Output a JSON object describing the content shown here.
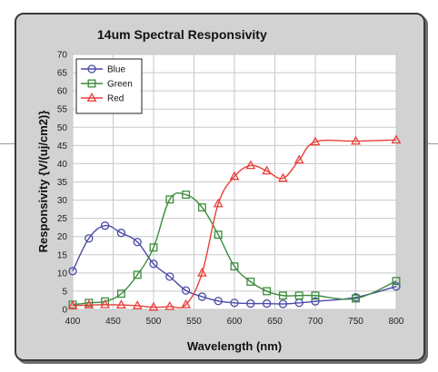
{
  "chart_data": {
    "type": "line",
    "title": "14um Spectral Responsivity",
    "xlabel": "Wavelength (nm)",
    "ylabel": "Responsivity {V/(uj/cm2)}",
    "xlim": [
      400,
      800
    ],
    "ylim": [
      0,
      70
    ],
    "xticks": [
      "400",
      "450",
      "500",
      "550",
      "600",
      "650",
      "700",
      "750",
      "800"
    ],
    "yticks": [
      "0",
      "5",
      "10",
      "15",
      "20",
      "25",
      "30",
      "35",
      "40",
      "45",
      "50",
      "55",
      "60",
      "65",
      "70"
    ],
    "grid": true,
    "legend_position": "top-left",
    "series": [
      {
        "name": "Blue",
        "color": "#4a4aa8",
        "marker": "circle",
        "x": [
          400,
          420,
          440,
          460,
          480,
          500,
          520,
          540,
          560,
          580,
          600,
          620,
          640,
          660,
          680,
          700,
          750,
          800
        ],
        "y": [
          10.5,
          19.5,
          23,
          21,
          18.5,
          12.5,
          9,
          5.2,
          3.5,
          2.3,
          1.8,
          1.6,
          1.6,
          1.5,
          1.8,
          2.2,
          3.3,
          6.3
        ]
      },
      {
        "name": "Green",
        "color": "#3c8c3c",
        "marker": "square",
        "x": [
          400,
          420,
          440,
          460,
          480,
          500,
          520,
          540,
          560,
          580,
          600,
          620,
          640,
          660,
          680,
          700,
          750,
          800
        ],
        "y": [
          1.3,
          1.8,
          2.2,
          4.3,
          9.5,
          17,
          30.2,
          31.5,
          28,
          20.5,
          11.8,
          7.6,
          5,
          3.8,
          3.8,
          3.8,
          3,
          7.8
        ]
      },
      {
        "name": "Red",
        "color": "#e8403a",
        "marker": "triangle",
        "x": [
          400,
          420,
          440,
          460,
          480,
          500,
          520,
          540,
          560,
          580,
          600,
          620,
          640,
          660,
          680,
          700,
          750,
          800
        ],
        "y": [
          1,
          1.2,
          1.3,
          1.2,
          1,
          0.6,
          0.8,
          1.3,
          10,
          29,
          36.5,
          39.5,
          38,
          36,
          41,
          46,
          46.2,
          46.5
        ]
      }
    ]
  }
}
